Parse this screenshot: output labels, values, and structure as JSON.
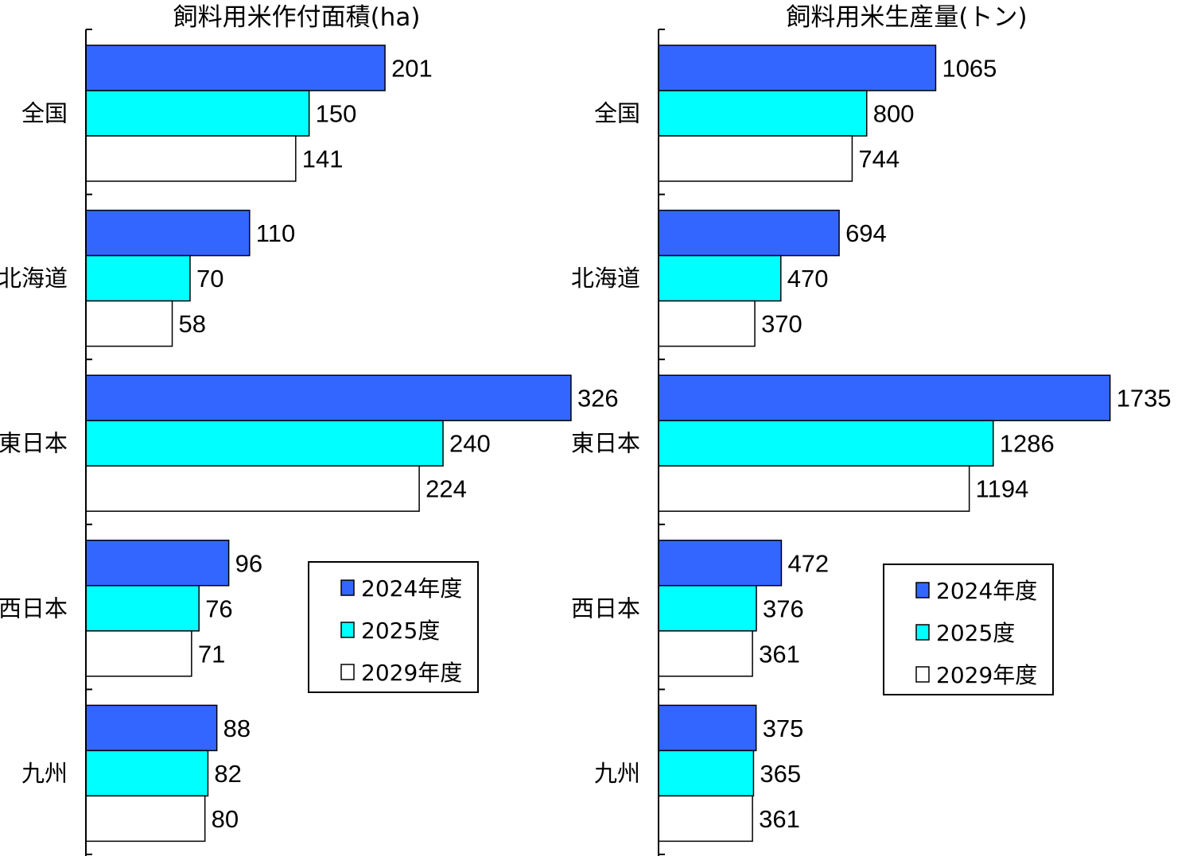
{
  "colors": {
    "2024": "#3366FF",
    "2025": "#00FFFF",
    "2029": "#FFFFFF",
    "outline": "#000000"
  },
  "chart_data": [
    {
      "type": "bar",
      "orientation": "horizontal",
      "title": "飼料用米作付面積(ha)",
      "categories": [
        "全国",
        "北海道",
        "東日本",
        "西日本",
        "九州"
      ],
      "series": [
        {
          "name": "2024年度",
          "values": [
            201,
            110,
            326,
            96,
            88
          ]
        },
        {
          "name": "2025度",
          "values": [
            150,
            70,
            240,
            76,
            82
          ]
        },
        {
          "name": "2029年度",
          "values": [
            141,
            58,
            224,
            71,
            80
          ]
        }
      ],
      "xlim": [
        0,
        326
      ],
      "legend": "lower-center"
    },
    {
      "type": "bar",
      "orientation": "horizontal",
      "title": "飼料用米生産量(トン)",
      "categories": [
        "全国",
        "北海道",
        "東日本",
        "西日本",
        "九州"
      ],
      "series": [
        {
          "name": "2024年度",
          "values": [
            1065,
            694,
            1735,
            472,
            375
          ]
        },
        {
          "name": "2025度",
          "values": [
            800,
            470,
            1286,
            376,
            365
          ]
        },
        {
          "name": "2029年度",
          "values": [
            744,
            370,
            1194,
            361,
            361
          ]
        }
      ],
      "xlim": [
        0,
        1735
      ],
      "legend": "lower-center"
    }
  ]
}
